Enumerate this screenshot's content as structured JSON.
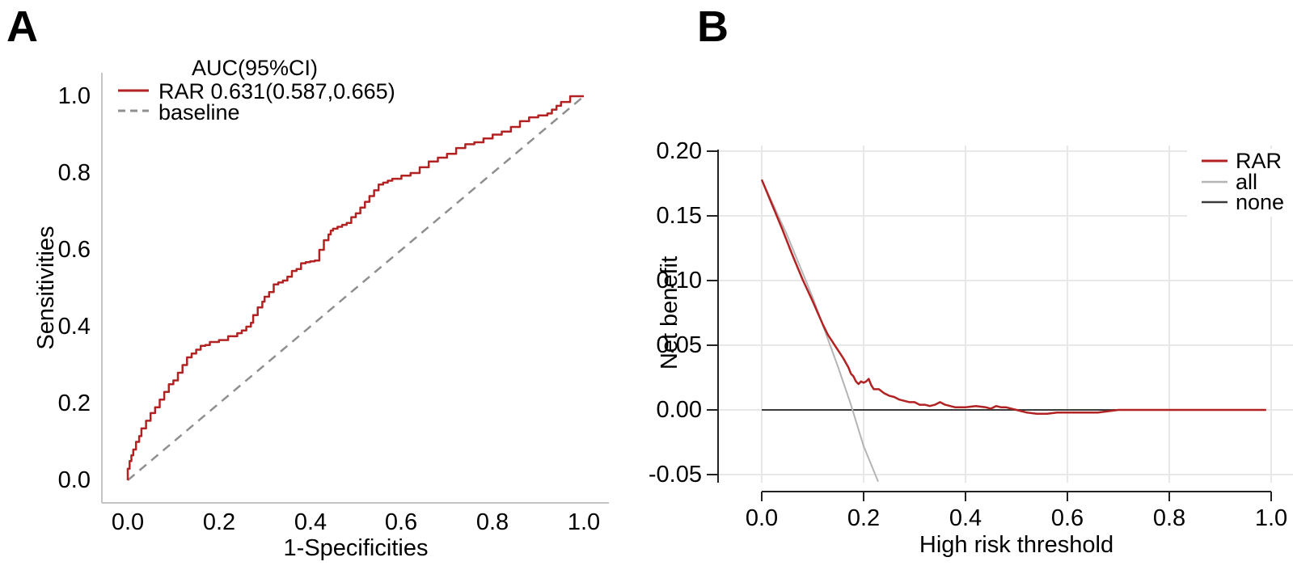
{
  "panels": {
    "a": {
      "label": "A",
      "legend_title": "AUC(95%CI)",
      "legend": [
        {
          "label": "RAR 0.631(0.587,0.665)",
          "color": "#b22222",
          "style": "solid"
        },
        {
          "label": "baseline",
          "color": "#8f8f8f",
          "style": "dashed"
        }
      ],
      "x_axis": {
        "title": "1-Specificities",
        "ticks": [
          "0.0",
          "0.2",
          "0.4",
          "0.6",
          "0.8",
          "1.0"
        ]
      },
      "y_axis": {
        "title": "Sensitivities",
        "ticks": [
          "1.0",
          "0.8",
          "0.6",
          "0.4",
          "0.2",
          "0.0"
        ]
      }
    },
    "b": {
      "label": "B",
      "legend": [
        {
          "label": "RAR",
          "color": "#b22222"
        },
        {
          "label": "all",
          "color": "#b4b4b4"
        },
        {
          "label": "none",
          "color": "#3a3a3a"
        }
      ],
      "x_axis": {
        "title": "High risk threshold",
        "ticks": [
          "0.0",
          "0.2",
          "0.4",
          "0.6",
          "0.8",
          "1.0"
        ]
      },
      "y_axis": {
        "title": "Net benefit",
        "ticks": [
          "0.20",
          "0.15",
          "0.10",
          "0.05",
          "0.00",
          "-0.05"
        ]
      }
    }
  },
  "colors": {
    "accent_red": "#b22222",
    "baseline_gray": "#8f8f8f",
    "all_gray": "#b4b4b4",
    "none_black": "#3a3a3a",
    "axis_light": "#c4c4c4",
    "axis_dark": "#222222",
    "grid": "#e8e8e8",
    "legend_bg": "#ffffff"
  },
  "chart_data": [
    {
      "type": "line",
      "id": "roc",
      "panel": "A",
      "title": "AUC(95%CI)",
      "xlabel": "1-Specificities",
      "ylabel": "Sensitivities",
      "xlim": [
        0,
        1
      ],
      "ylim": [
        0,
        1
      ],
      "x_ticks": [
        0.0,
        0.2,
        0.4,
        0.6,
        0.8,
        1.0
      ],
      "y_ticks": [
        0.0,
        0.2,
        0.4,
        0.6,
        0.8,
        1.0
      ],
      "grid": false,
      "legend_position": "top-left-inside",
      "series": [
        {
          "name": "RAR 0.631(0.587,0.665)",
          "auc": 0.631,
          "ci_low": 0.587,
          "ci_high": 0.665,
          "color": "#b22222",
          "dash": "solid",
          "interp": "step-v",
          "points": [
            [
              0,
              0
            ],
            [
              0.004,
              0.03
            ],
            [
              0.008,
              0.05
            ],
            [
              0.012,
              0.065
            ],
            [
              0.018,
              0.08
            ],
            [
              0.025,
              0.1
            ],
            [
              0.03,
              0.115
            ],
            [
              0.04,
              0.135
            ],
            [
              0.05,
              0.155
            ],
            [
              0.06,
              0.175
            ],
            [
              0.07,
              0.19
            ],
            [
              0.08,
              0.21
            ],
            [
              0.09,
              0.23
            ],
            [
              0.1,
              0.25
            ],
            [
              0.11,
              0.26
            ],
            [
              0.12,
              0.28
            ],
            [
              0.13,
              0.3
            ],
            [
              0.14,
              0.32
            ],
            [
              0.15,
              0.33
            ],
            [
              0.16,
              0.34
            ],
            [
              0.17,
              0.35
            ],
            [
              0.18,
              0.352
            ],
            [
              0.2,
              0.36
            ],
            [
              0.22,
              0.365
            ],
            [
              0.24,
              0.375
            ],
            [
              0.25,
              0.383
            ],
            [
              0.26,
              0.39
            ],
            [
              0.27,
              0.4
            ],
            [
              0.275,
              0.41
            ],
            [
              0.285,
              0.43
            ],
            [
              0.295,
              0.45
            ],
            [
              0.3,
              0.465
            ],
            [
              0.31,
              0.478
            ],
            [
              0.32,
              0.49
            ],
            [
              0.33,
              0.51
            ],
            [
              0.34,
              0.515
            ],
            [
              0.35,
              0.52
            ],
            [
              0.36,
              0.53
            ],
            [
              0.37,
              0.545
            ],
            [
              0.38,
              0.55
            ],
            [
              0.39,
              0.565
            ],
            [
              0.4,
              0.568
            ],
            [
              0.41,
              0.57
            ],
            [
              0.42,
              0.572
            ],
            [
              0.43,
              0.6
            ],
            [
              0.44,
              0.625
            ],
            [
              0.445,
              0.64
            ],
            [
              0.45,
              0.65
            ],
            [
              0.46,
              0.655
            ],
            [
              0.47,
              0.66
            ],
            [
              0.48,
              0.665
            ],
            [
              0.49,
              0.67
            ],
            [
              0.5,
              0.685
            ],
            [
              0.51,
              0.695
            ],
            [
              0.52,
              0.71
            ],
            [
              0.53,
              0.725
            ],
            [
              0.54,
              0.74
            ],
            [
              0.55,
              0.755
            ],
            [
              0.56,
              0.77
            ],
            [
              0.57,
              0.775
            ],
            [
              0.58,
              0.78
            ],
            [
              0.6,
              0.785
            ],
            [
              0.62,
              0.793
            ],
            [
              0.64,
              0.8
            ],
            [
              0.66,
              0.815
            ],
            [
              0.68,
              0.83
            ],
            [
              0.7,
              0.84
            ],
            [
              0.72,
              0.85
            ],
            [
              0.74,
              0.865
            ],
            [
              0.76,
              0.875
            ],
            [
              0.78,
              0.88
            ],
            [
              0.8,
              0.89
            ],
            [
              0.82,
              0.9
            ],
            [
              0.84,
              0.908
            ],
            [
              0.86,
              0.92
            ],
            [
              0.88,
              0.935
            ],
            [
              0.9,
              0.945
            ],
            [
              0.92,
              0.95
            ],
            [
              0.93,
              0.955
            ],
            [
              0.94,
              0.965
            ],
            [
              0.95,
              0.975
            ],
            [
              0.96,
              0.985
            ],
            [
              0.97,
              0.985
            ],
            [
              0.98,
              1.0
            ],
            [
              1.0,
              1.0
            ]
          ]
        },
        {
          "name": "baseline",
          "color": "#8f8f8f",
          "dash": "dashed",
          "interp": "linear",
          "points": [
            [
              0,
              0
            ],
            [
              1,
              1
            ]
          ]
        }
      ]
    },
    {
      "type": "line",
      "id": "decision-curve",
      "panel": "B",
      "xlabel": "High risk threshold",
      "ylabel": "Net benefit",
      "xlim": [
        0,
        1
      ],
      "ylim": [
        -0.056,
        0.205
      ],
      "x_ticks": [
        0.0,
        0.2,
        0.4,
        0.6,
        0.8,
        1.0
      ],
      "y_ticks": [
        0.2,
        0.15,
        0.1,
        0.05,
        0.0,
        -0.05
      ],
      "grid": true,
      "legend_position": "top-right-inside",
      "series": [
        {
          "name": "RAR",
          "color": "#b22222",
          "dash": "solid",
          "interp": "linear",
          "points": [
            [
              0,
              0.178
            ],
            [
              0.02,
              0.159
            ],
            [
              0.04,
              0.14
            ],
            [
              0.06,
              0.12
            ],
            [
              0.08,
              0.101
            ],
            [
              0.1,
              0.084
            ],
            [
              0.11,
              0.075
            ],
            [
              0.12,
              0.066
            ],
            [
              0.13,
              0.058
            ],
            [
              0.14,
              0.052
            ],
            [
              0.15,
              0.046
            ],
            [
              0.16,
              0.04
            ],
            [
              0.17,
              0.033
            ],
            [
              0.175,
              0.028
            ],
            [
              0.18,
              0.026
            ],
            [
              0.185,
              0.022
            ],
            [
              0.19,
              0.02
            ],
            [
              0.195,
              0.022
            ],
            [
              0.2,
              0.021
            ],
            [
              0.205,
              0.022
            ],
            [
              0.21,
              0.024
            ],
            [
              0.215,
              0.019
            ],
            [
              0.22,
              0.016
            ],
            [
              0.23,
              0.016
            ],
            [
              0.24,
              0.013
            ],
            [
              0.25,
              0.011
            ],
            [
              0.26,
              0.01
            ],
            [
              0.27,
              0.008
            ],
            [
              0.28,
              0.007
            ],
            [
              0.29,
              0.006
            ],
            [
              0.3,
              0.006
            ],
            [
              0.31,
              0.004
            ],
            [
              0.32,
              0.004
            ],
            [
              0.33,
              0.003
            ],
            [
              0.34,
              0.004
            ],
            [
              0.35,
              0.006
            ],
            [
              0.36,
              0.004
            ],
            [
              0.37,
              0.003
            ],
            [
              0.38,
              0.002
            ],
            [
              0.4,
              0.002
            ],
            [
              0.42,
              0.003
            ],
            [
              0.44,
              0.002
            ],
            [
              0.45,
              0.001
            ],
            [
              0.46,
              0.003
            ],
            [
              0.47,
              0.002
            ],
            [
              0.48,
              0.002
            ],
            [
              0.49,
              0.001
            ],
            [
              0.5,
              0.0
            ],
            [
              0.52,
              -0.002
            ],
            [
              0.54,
              -0.003
            ],
            [
              0.56,
              -0.003
            ],
            [
              0.58,
              -0.002
            ],
            [
              0.6,
              -0.002
            ],
            [
              0.62,
              -0.002
            ],
            [
              0.64,
              -0.002
            ],
            [
              0.66,
              -0.002
            ],
            [
              0.68,
              -0.001
            ],
            [
              0.7,
              0.0
            ],
            [
              0.75,
              0.0
            ],
            [
              0.8,
              0.0
            ],
            [
              0.85,
              0.0
            ],
            [
              0.9,
              0.0
            ],
            [
              0.95,
              0.0
            ],
            [
              0.99,
              0.0
            ]
          ]
        },
        {
          "name": "all",
          "color": "#b4b4b4",
          "dash": "solid",
          "interp": "linear",
          "points": [
            [
              0,
              0.178
            ],
            [
              0.05,
              0.135
            ],
            [
              0.1,
              0.087
            ],
            [
              0.15,
              0.033
            ],
            [
              0.175,
              0.004
            ],
            [
              0.2,
              -0.028
            ],
            [
              0.2285,
              -0.0555
            ]
          ]
        },
        {
          "name": "none",
          "color": "#3a3a3a",
          "dash": "solid",
          "interp": "linear",
          "points": [
            [
              0,
              0
            ],
            [
              0.99,
              0
            ]
          ]
        }
      ]
    }
  ]
}
